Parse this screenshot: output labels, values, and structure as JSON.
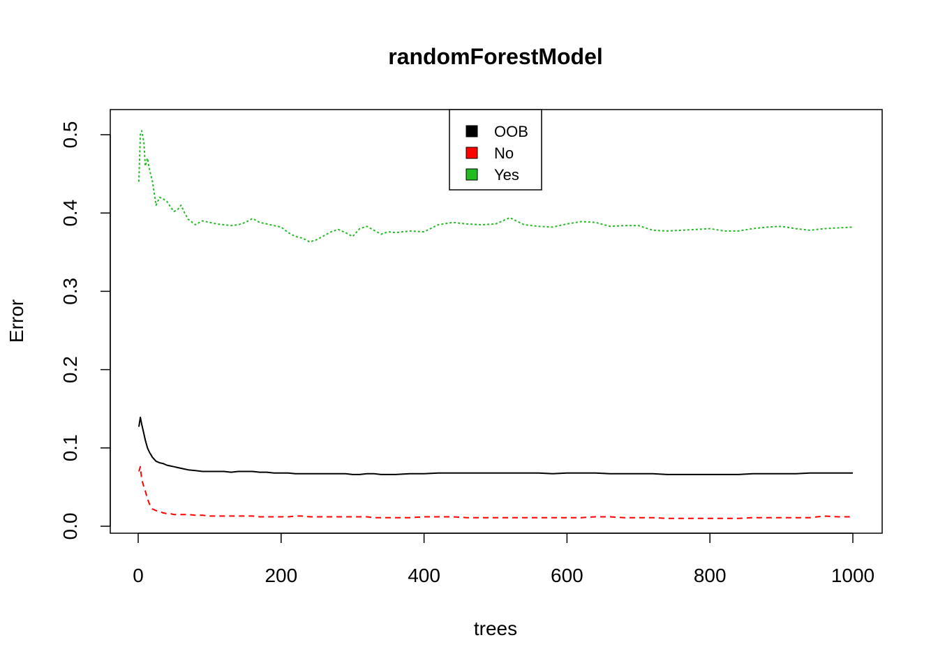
{
  "chart_data": {
    "type": "line",
    "title": "randomForestModel",
    "xlabel": "trees",
    "ylabel": "Error",
    "xlim": [
      0,
      1000
    ],
    "ylim": [
      0.0,
      0.5
    ],
    "xticks": [
      0,
      200,
      400,
      600,
      800,
      1000
    ],
    "xtick_labels": [
      "0",
      "200",
      "400",
      "600",
      "800",
      "1000"
    ],
    "yticks": [
      0.0,
      0.1,
      0.2,
      0.3,
      0.4,
      0.5
    ],
    "ytick_labels": [
      "0.0",
      "0.1",
      "0.2",
      "0.3",
      "0.4",
      "0.5"
    ],
    "grid": false,
    "legend": {
      "position": "top-center"
    },
    "x": [
      1,
      3,
      5,
      8,
      10,
      13,
      16,
      20,
      25,
      30,
      35,
      40,
      45,
      50,
      55,
      60,
      65,
      70,
      80,
      90,
      100,
      110,
      120,
      130,
      140,
      150,
      160,
      170,
      180,
      190,
      200,
      210,
      220,
      230,
      240,
      250,
      260,
      270,
      280,
      290,
      300,
      310,
      320,
      330,
      340,
      350,
      360,
      380,
      400,
      420,
      440,
      460,
      480,
      500,
      520,
      540,
      560,
      580,
      600,
      620,
      640,
      660,
      680,
      700,
      720,
      740,
      760,
      780,
      800,
      820,
      840,
      860,
      880,
      900,
      920,
      940,
      960,
      980,
      1000
    ],
    "series": [
      {
        "name": "OOB",
        "color": "#000000",
        "dash": "solid",
        "values": [
          0.127,
          0.139,
          0.13,
          0.118,
          0.11,
          0.1,
          0.094,
          0.088,
          0.083,
          0.081,
          0.08,
          0.078,
          0.077,
          0.076,
          0.075,
          0.074,
          0.073,
          0.072,
          0.071,
          0.07,
          0.07,
          0.07,
          0.07,
          0.069,
          0.07,
          0.07,
          0.07,
          0.069,
          0.069,
          0.068,
          0.068,
          0.068,
          0.067,
          0.067,
          0.067,
          0.067,
          0.067,
          0.067,
          0.067,
          0.067,
          0.066,
          0.066,
          0.067,
          0.067,
          0.066,
          0.066,
          0.066,
          0.067,
          0.067,
          0.068,
          0.068,
          0.068,
          0.068,
          0.068,
          0.068,
          0.068,
          0.068,
          0.067,
          0.068,
          0.068,
          0.068,
          0.067,
          0.067,
          0.067,
          0.067,
          0.066,
          0.066,
          0.066,
          0.066,
          0.066,
          0.066,
          0.067,
          0.067,
          0.067,
          0.067,
          0.068,
          0.068,
          0.068,
          0.068
        ]
      },
      {
        "name": "No",
        "color": "#ff0000",
        "dash": "dashed",
        "values": [
          0.07,
          0.076,
          0.06,
          0.05,
          0.045,
          0.035,
          0.028,
          0.022,
          0.02,
          0.019,
          0.017,
          0.016,
          0.016,
          0.015,
          0.015,
          0.015,
          0.015,
          0.015,
          0.014,
          0.014,
          0.013,
          0.013,
          0.013,
          0.013,
          0.013,
          0.013,
          0.013,
          0.012,
          0.012,
          0.012,
          0.012,
          0.012,
          0.013,
          0.013,
          0.012,
          0.012,
          0.012,
          0.012,
          0.012,
          0.012,
          0.012,
          0.012,
          0.012,
          0.011,
          0.011,
          0.011,
          0.011,
          0.011,
          0.012,
          0.012,
          0.012,
          0.011,
          0.011,
          0.011,
          0.011,
          0.011,
          0.011,
          0.011,
          0.011,
          0.011,
          0.012,
          0.012,
          0.011,
          0.011,
          0.011,
          0.01,
          0.01,
          0.01,
          0.01,
          0.01,
          0.01,
          0.011,
          0.011,
          0.011,
          0.011,
          0.011,
          0.013,
          0.012,
          0.012
        ]
      },
      {
        "name": "Yes",
        "color": "#22bb22",
        "dash": "dotted",
        "values": [
          0.44,
          0.5,
          0.505,
          0.49,
          0.46,
          0.47,
          0.455,
          0.44,
          0.41,
          0.42,
          0.418,
          0.415,
          0.408,
          0.402,
          0.404,
          0.41,
          0.4,
          0.392,
          0.385,
          0.39,
          0.388,
          0.386,
          0.385,
          0.384,
          0.385,
          0.388,
          0.393,
          0.388,
          0.386,
          0.384,
          0.382,
          0.375,
          0.37,
          0.368,
          0.363,
          0.366,
          0.371,
          0.376,
          0.379,
          0.375,
          0.37,
          0.38,
          0.383,
          0.378,
          0.373,
          0.376,
          0.375,
          0.377,
          0.376,
          0.385,
          0.388,
          0.386,
          0.385,
          0.386,
          0.394,
          0.385,
          0.383,
          0.382,
          0.386,
          0.389,
          0.388,
          0.383,
          0.384,
          0.384,
          0.378,
          0.377,
          0.378,
          0.379,
          0.38,
          0.377,
          0.377,
          0.38,
          0.382,
          0.383,
          0.38,
          0.378,
          0.38,
          0.381,
          0.382
        ]
      }
    ]
  }
}
